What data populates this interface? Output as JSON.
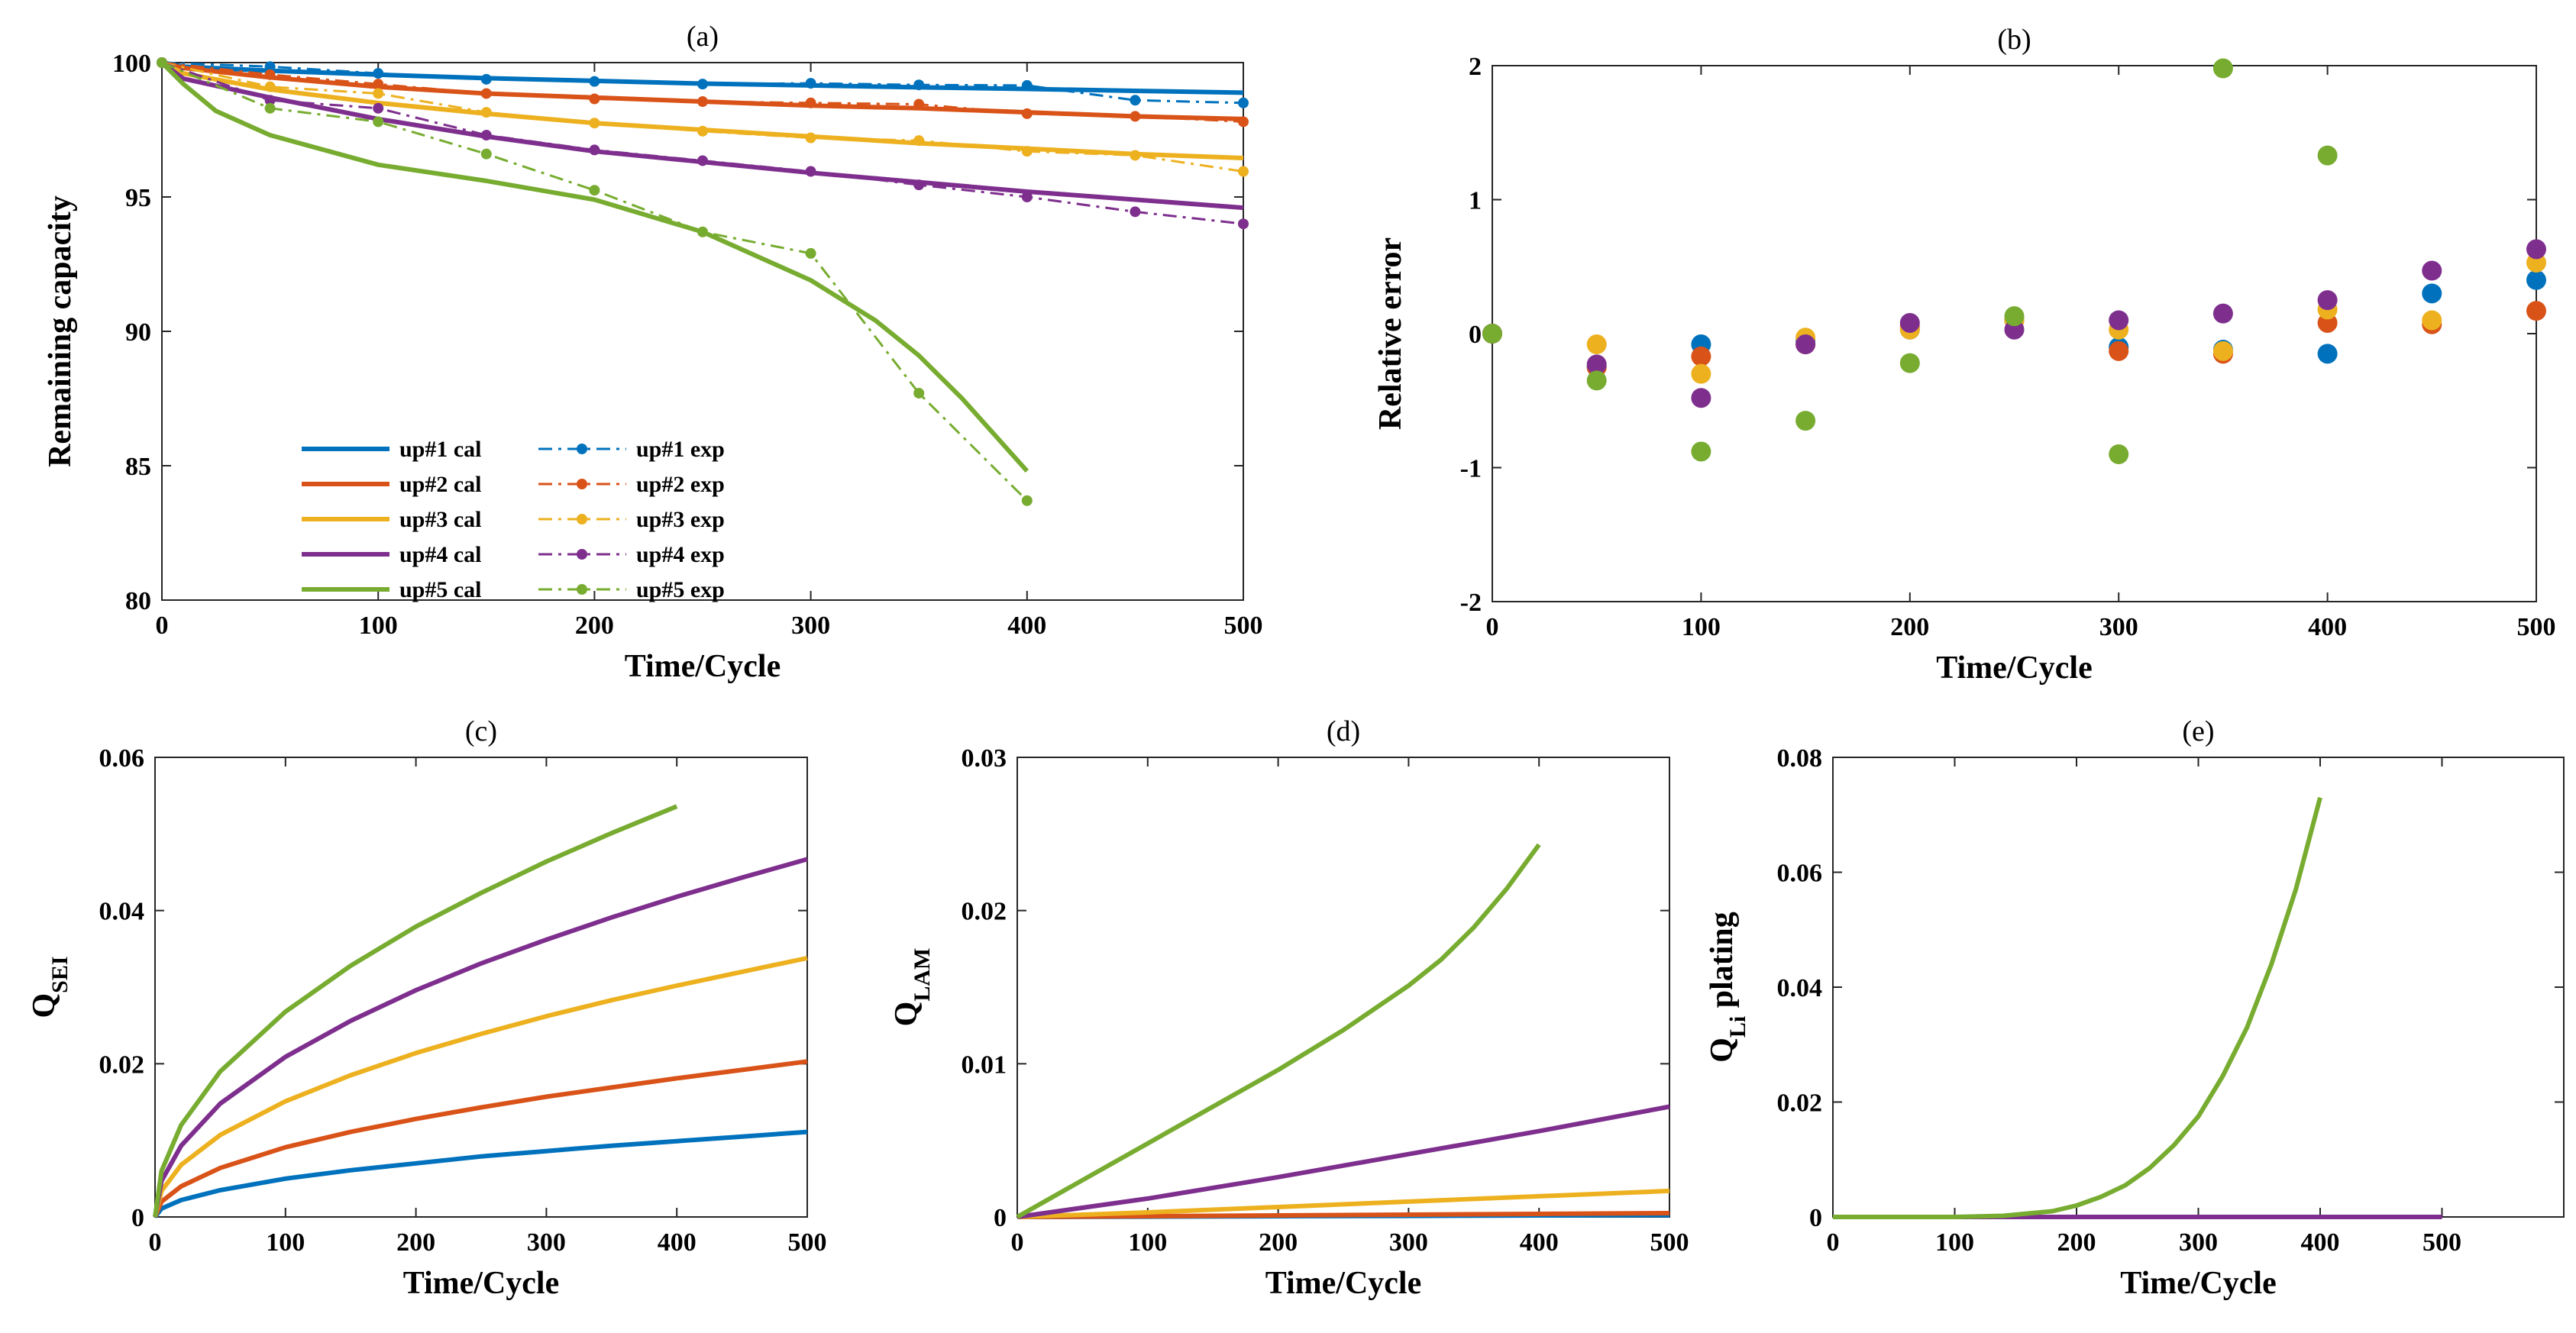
{
  "colors": {
    "up1": "#0072BD",
    "up2": "#D95319",
    "up3": "#EDB120",
    "up4": "#7E2F8E",
    "up5": "#77AC30"
  },
  "chart_data": [
    {
      "id": "a",
      "type": "line",
      "title": "(a)",
      "xlabel": "Time/Cycle",
      "ylabel": "Remaining capacity",
      "xlim": [
        0,
        500
      ],
      "ylim": [
        80,
        100
      ],
      "xticks": [
        "0",
        "100",
        "200",
        "300",
        "400",
        "500"
      ],
      "yticks": [
        "80",
        "85",
        "90",
        "95",
        "100"
      ],
      "legend": [
        "up#1 cal",
        "up#2 cal",
        "up#3 cal",
        "up#4 cal",
        "up#5 cal",
        "up#1 exp",
        "up#2 exp",
        "up#3 exp",
        "up#4 exp",
        "up#5 exp"
      ],
      "series": [
        {
          "name": "up#1 cal",
          "style": "solid",
          "color": "up1",
          "x": [
            0,
            10,
            50,
            100,
            150,
            200,
            250,
            300,
            350,
            400,
            450,
            500
          ],
          "y": [
            100,
            99.85,
            99.7,
            99.55,
            99.42,
            99.32,
            99.22,
            99.15,
            99.08,
            99.02,
            98.95,
            98.88
          ]
        },
        {
          "name": "up#2 cal",
          "style": "solid",
          "color": "up2",
          "x": [
            0,
            10,
            50,
            100,
            150,
            200,
            250,
            300,
            350,
            400,
            450,
            500
          ],
          "y": [
            100,
            99.8,
            99.45,
            99.1,
            98.85,
            98.7,
            98.55,
            98.4,
            98.3,
            98.15,
            98.0,
            97.9
          ]
        },
        {
          "name": "up#3 cal",
          "style": "solid",
          "color": "up3",
          "x": [
            0,
            10,
            50,
            100,
            150,
            200,
            250,
            300,
            350,
            400,
            450,
            500
          ],
          "y": [
            100,
            99.6,
            99.0,
            98.5,
            98.1,
            97.75,
            97.5,
            97.25,
            97.0,
            96.8,
            96.6,
            96.45
          ]
        },
        {
          "name": "up#4 cal",
          "style": "solid",
          "color": "up4",
          "x": [
            0,
            10,
            50,
            100,
            150,
            200,
            250,
            300,
            350,
            400,
            450,
            500
          ],
          "y": [
            100,
            99.4,
            98.7,
            97.9,
            97.25,
            96.7,
            96.3,
            95.9,
            95.55,
            95.2,
            94.9,
            94.6
          ]
        },
        {
          "name": "up#5 cal",
          "style": "solid",
          "color": "up5",
          "x": [
            0,
            10,
            25,
            50,
            100,
            150,
            200,
            250,
            300,
            330,
            350,
            370,
            390,
            400
          ],
          "y": [
            100,
            99.2,
            98.2,
            97.3,
            96.2,
            95.6,
            94.9,
            93.7,
            91.9,
            90.4,
            89.1,
            87.5,
            85.7,
            84.8
          ]
        },
        {
          "name": "up#1 exp",
          "style": "dashdot",
          "color": "up1",
          "x": [
            0,
            50,
            100,
            150,
            200,
            250,
            300,
            350,
            400,
            450,
            500
          ],
          "y": [
            100,
            99.85,
            99.6,
            99.38,
            99.3,
            99.2,
            99.23,
            99.17,
            99.15,
            98.6,
            98.5
          ]
        },
        {
          "name": "up#2 exp",
          "style": "dashdot",
          "color": "up2",
          "x": [
            0,
            50,
            100,
            150,
            200,
            250,
            300,
            350,
            400,
            450,
            500
          ],
          "y": [
            100,
            99.55,
            99.2,
            98.85,
            98.65,
            98.55,
            98.5,
            98.45,
            98.1,
            98.0,
            97.8
          ]
        },
        {
          "name": "up#3 exp",
          "style": "dashdot",
          "color": "up3",
          "x": [
            0,
            50,
            100,
            150,
            200,
            250,
            300,
            350,
            400,
            450,
            500
          ],
          "y": [
            100,
            99.1,
            98.85,
            98.15,
            97.75,
            97.45,
            97.2,
            97.1,
            96.7,
            96.55,
            95.95
          ]
        },
        {
          "name": "up#4 exp",
          "style": "dashdot",
          "color": "up4",
          "x": [
            0,
            50,
            100,
            150,
            200,
            250,
            300,
            350,
            400,
            450,
            500
          ],
          "y": [
            100,
            98.6,
            98.3,
            97.3,
            96.75,
            96.35,
            95.95,
            95.45,
            95.0,
            94.45,
            94.0
          ]
        },
        {
          "name": "up#5 exp",
          "style": "dashdot",
          "color": "up5",
          "x": [
            0,
            50,
            100,
            150,
            200,
            250,
            300,
            350,
            400
          ],
          "y": [
            100,
            98.3,
            97.8,
            96.6,
            95.25,
            93.7,
            92.9,
            87.7,
            83.7
          ]
        }
      ]
    },
    {
      "id": "b",
      "type": "scatter",
      "title": "(b)",
      "xlabel": "Time/Cycle",
      "ylabel": "Relative error",
      "xlim": [
        0,
        500
      ],
      "ylim": [
        -2,
        2
      ],
      "xticks": [
        "0",
        "100",
        "200",
        "300",
        "400",
        "500"
      ],
      "yticks": [
        "-2",
        "-1",
        "0",
        "1",
        "2"
      ],
      "series": [
        {
          "name": "up#1",
          "color": "up1",
          "x": [
            0,
            50,
            100,
            150,
            200,
            250,
            300,
            350,
            400,
            450,
            500
          ],
          "y": [
            0,
            -0.25,
            -0.08,
            -0.05,
            0.03,
            0.1,
            -0.1,
            -0.12,
            -0.15,
            0.3,
            0.4
          ]
        },
        {
          "name": "up#2",
          "color": "up2",
          "x": [
            0,
            50,
            100,
            150,
            200,
            250,
            300,
            350,
            400,
            450,
            500
          ],
          "y": [
            0,
            -0.25,
            -0.17,
            -0.08,
            0.05,
            0.1,
            -0.13,
            -0.15,
            0.08,
            0.07,
            0.17
          ]
        },
        {
          "name": "up#3",
          "color": "up3",
          "x": [
            0,
            50,
            100,
            150,
            200,
            250,
            300,
            350,
            400,
            450,
            500
          ],
          "y": [
            0,
            -0.08,
            -0.3,
            -0.03,
            0.03,
            0.1,
            0.03,
            -0.13,
            0.18,
            0.1,
            0.53
          ]
        },
        {
          "name": "up#4",
          "color": "up4",
          "x": [
            0,
            50,
            100,
            150,
            200,
            250,
            300,
            350,
            400,
            450,
            500
          ],
          "y": [
            0,
            -0.23,
            -0.48,
            -0.08,
            0.08,
            0.03,
            0.1,
            0.15,
            0.25,
            0.47,
            0.63
          ]
        },
        {
          "name": "up#5",
          "color": "up5",
          "x": [
            0,
            50,
            100,
            150,
            200,
            250,
            300,
            350,
            400
          ],
          "y": [
            0,
            -0.35,
            -0.88,
            -0.65,
            -0.22,
            0.13,
            -0.9,
            1.98,
            1.33
          ]
        }
      ]
    },
    {
      "id": "c",
      "type": "line",
      "title": "(c)",
      "xlabel": "Time/Cycle",
      "ylabel_main": "Q",
      "ylabel_sub": "SEI",
      "xlim": [
        0,
        500
      ],
      "ylim": [
        0,
        0.06
      ],
      "xticks": [
        "0",
        "100",
        "200",
        "300",
        "400",
        "500"
      ],
      "yticks": [
        "0",
        "0.02",
        "0.04",
        "0.06"
      ],
      "series": [
        {
          "name": "up#1",
          "color": "up1",
          "x": [
            0,
            5,
            20,
            50,
            100,
            150,
            200,
            250,
            300,
            350,
            400,
            450,
            500
          ],
          "y": [
            0,
            0.0011,
            0.0022,
            0.0035,
            0.005,
            0.0061,
            0.007,
            0.0079,
            0.0086,
            0.0093,
            0.0099,
            0.0105,
            0.0111
          ]
        },
        {
          "name": "up#2",
          "color": "up2",
          "x": [
            0,
            5,
            20,
            50,
            100,
            150,
            200,
            250,
            300,
            350,
            400,
            450,
            500
          ],
          "y": [
            0,
            0.002,
            0.004,
            0.0064,
            0.0091,
            0.0111,
            0.0128,
            0.0143,
            0.0157,
            0.0169,
            0.0181,
            0.0192,
            0.0203
          ]
        },
        {
          "name": "up#3",
          "color": "up3",
          "x": [
            0,
            5,
            20,
            50,
            100,
            150,
            200,
            250,
            300,
            350,
            400,
            450,
            500
          ],
          "y": [
            0,
            0.0034,
            0.0068,
            0.0107,
            0.0151,
            0.0185,
            0.0214,
            0.0239,
            0.0262,
            0.0283,
            0.0302,
            0.032,
            0.0338
          ]
        },
        {
          "name": "up#4",
          "color": "up4",
          "x": [
            0,
            5,
            20,
            50,
            100,
            150,
            200,
            250,
            300,
            350,
            400,
            450,
            500
          ],
          "y": [
            0,
            0.0047,
            0.0093,
            0.0148,
            0.0209,
            0.0256,
            0.0296,
            0.0331,
            0.0362,
            0.0391,
            0.0418,
            0.0443,
            0.0467
          ]
        },
        {
          "name": "up#5",
          "color": "up5",
          "x": [
            0,
            5,
            20,
            50,
            100,
            150,
            200,
            250,
            300,
            350,
            400
          ],
          "y": [
            0,
            0.006,
            0.012,
            0.019,
            0.0268,
            0.0328,
            0.0379,
            0.0423,
            0.0464,
            0.0501,
            0.0536
          ]
        }
      ]
    },
    {
      "id": "d",
      "type": "line",
      "title": "(d)",
      "xlabel": "Time/Cycle",
      "ylabel_main": "Q",
      "ylabel_sub": "LAM",
      "xlim": [
        0,
        500
      ],
      "ylim": [
        0,
        0.03
      ],
      "xticks": [
        "0",
        "100",
        "200",
        "300",
        "400",
        "500"
      ],
      "yticks": [
        "0",
        "0.01",
        "0.02",
        "0.03"
      ],
      "series": [
        {
          "name": "up#1",
          "color": "up1",
          "x": [
            0,
            100,
            200,
            300,
            400,
            500
          ],
          "y": [
            0,
            2e-05,
            5e-05,
            7e-05,
            0.0001,
            0.00012
          ]
        },
        {
          "name": "up#2",
          "color": "up2",
          "x": [
            0,
            100,
            200,
            300,
            400,
            500
          ],
          "y": [
            0,
            5e-05,
            0.0001,
            0.00015,
            0.0002,
            0.00025
          ]
        },
        {
          "name": "up#3",
          "color": "up3",
          "x": [
            0,
            100,
            200,
            300,
            400,
            500
          ],
          "y": [
            0,
            0.0003,
            0.00065,
            0.001,
            0.00135,
            0.0017
          ]
        },
        {
          "name": "up#4",
          "color": "up4",
          "x": [
            0,
            100,
            200,
            300,
            400,
            500
          ],
          "y": [
            0,
            0.0012,
            0.0026,
            0.0041,
            0.0056,
            0.0072
          ]
        },
        {
          "name": "up#5",
          "color": "up5",
          "x": [
            0,
            50,
            100,
            150,
            200,
            250,
            300,
            325,
            350,
            375,
            400
          ],
          "y": [
            0,
            0.0024,
            0.0048,
            0.0072,
            0.0096,
            0.0122,
            0.0151,
            0.0168,
            0.0189,
            0.0214,
            0.0243
          ]
        }
      ]
    },
    {
      "id": "e",
      "type": "line",
      "title": "(e)",
      "xlabel": "Time/Cycle",
      "ylabel_main": "Q",
      "ylabel_sub": "Li",
      "ylabel_rest": " plating",
      "xlim": [
        0,
        600
      ],
      "ylim": [
        0,
        0.08
      ],
      "xticks": [
        "0",
        "100",
        "200",
        "300",
        "400",
        "500"
      ],
      "xtick_values": [
        0,
        100,
        200,
        300,
        400,
        500
      ],
      "yticks": [
        "0",
        "0.02",
        "0.04",
        "0.06",
        "0.08"
      ],
      "series": [
        {
          "name": "up#1",
          "color": "up1",
          "x": [
            0,
            500
          ],
          "y": [
            0,
            0
          ]
        },
        {
          "name": "up#2",
          "color": "up2",
          "x": [
            0,
            500
          ],
          "y": [
            0,
            0
          ]
        },
        {
          "name": "up#3",
          "color": "up3",
          "x": [
            0,
            500
          ],
          "y": [
            0,
            0
          ]
        },
        {
          "name": "up#4",
          "color": "up4",
          "x": [
            0,
            500
          ],
          "y": [
            0,
            0
          ]
        },
        {
          "name": "up#5",
          "color": "up5",
          "x": [
            0,
            100,
            140,
            180,
            200,
            220,
            240,
            260,
            280,
            300,
            320,
            340,
            360,
            380,
            400
          ],
          "y": [
            0,
            0,
            0.0002,
            0.001,
            0.002,
            0.0035,
            0.0055,
            0.0085,
            0.0125,
            0.0175,
            0.0245,
            0.033,
            0.044,
            0.057,
            0.073
          ]
        }
      ]
    }
  ]
}
